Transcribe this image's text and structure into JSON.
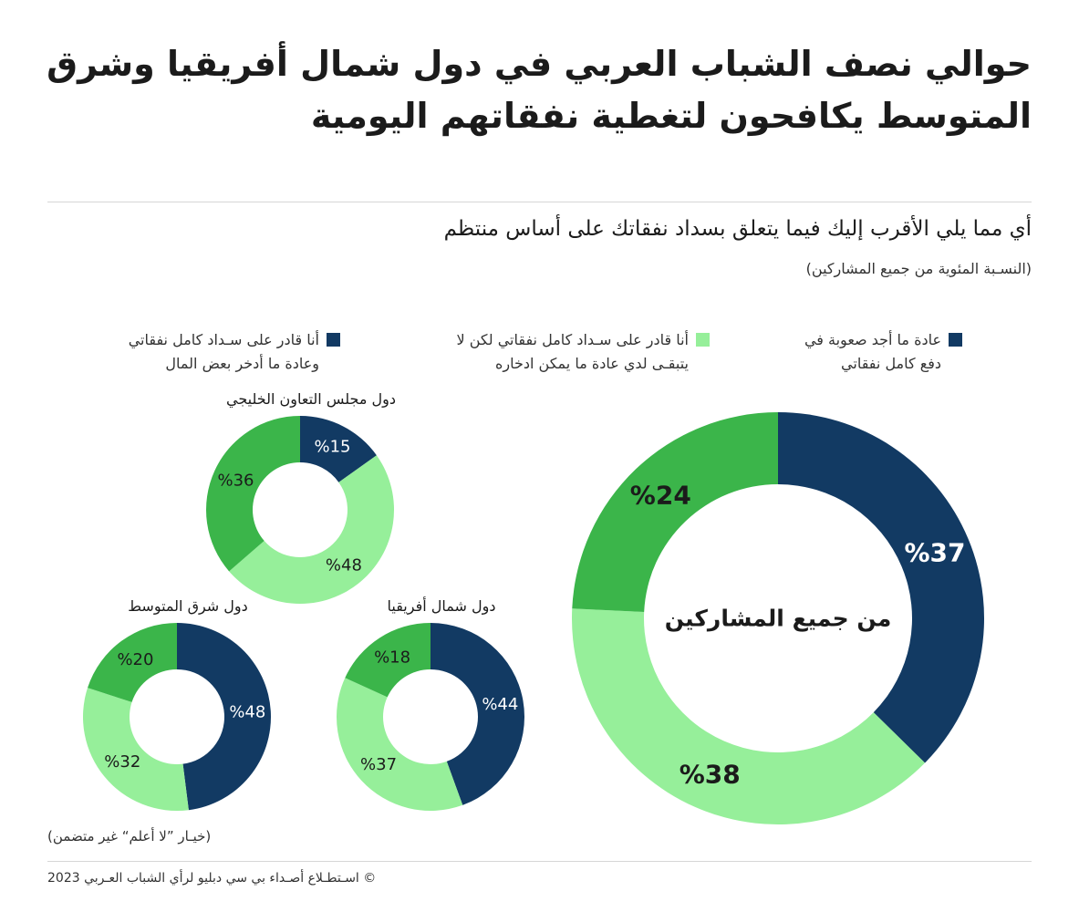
{
  "header": {
    "title_line1": "حوالي نصف الشباب العربي في دول شمال أفريقيا وشرق",
    "title_line2": "المتوسط يكافحون لتغطية نفقاتهم اليومية",
    "subtitle": "أي مما يلي الأقرب إليك فيما يتعلق بسداد نفقاتك على أساس منتظم",
    "unit": "(النسـبة المئوية من جميع المشاركين)"
  },
  "legend": [
    {
      "line1": "عادة ما أجد صعوبة في",
      "line2": "دفع كامل نفقاتي",
      "color": "#123a63"
    },
    {
      "line1": "أنا قادر على سـداد كامل نفقاتي لكن لا",
      "line2": "يتبقـى لدي عادة ما يمكن ادخاره",
      "color": "#96ef9a"
    },
    {
      "line1": "أنا قادر على سـداد كامل نفقاتي",
      "line2": "وعادة ما أدخر بعض المال",
      "color": "#123a63"
    }
  ],
  "colors": {
    "dark": "#123a63",
    "light": "#96ef9a",
    "mid": "#3bb54a"
  },
  "chart_data": [
    {
      "type": "pie",
      "title": "من جميع المشاركين",
      "categories": [
        "عادة ما أجد صعوبة في دفع كامل نفقاتي",
        "أنا قادر على سداد كامل نفقاتي لكن لا يتبقى لدي عادة ما يمكن ادخاره",
        "أنا قادر على سداد كامل نفقاتي وعادة ما أدخر بعض المال"
      ],
      "values": [
        37,
        38,
        24
      ],
      "labels": [
        "%37",
        "%38",
        "%24"
      ]
    },
    {
      "type": "pie",
      "title": "دول مجلس التعاون الخليجي",
      "categories": [
        "عادة ما أجد صعوبة في دفع كامل نفقاتي",
        "أنا قادر على سداد كامل نفقاتي لكن لا يتبقى لدي عادة ما يمكن ادخاره",
        "أنا قادر على سداد كامل نفقاتي وعادة ما أدخر بعض المال"
      ],
      "values": [
        15,
        48,
        36
      ],
      "labels": [
        "%15",
        "%48",
        "%36"
      ]
    },
    {
      "type": "pie",
      "title": "دول شمال أفريقيا",
      "categories": [
        "عادة ما أجد صعوبة في دفع كامل نفقاتي",
        "أنا قادر على سداد كامل نفقاتي لكن لا يتبقى لدي عادة ما يمكن ادخاره",
        "أنا قادر على سداد كامل نفقاتي وعادة ما أدخر بعض المال"
      ],
      "values": [
        44,
        37,
        18
      ],
      "labels": [
        "%44",
        "%37",
        "%18"
      ]
    },
    {
      "type": "pie",
      "title": "دول شرق المتوسط",
      "categories": [
        "عادة ما أجد صعوبة في دفع كامل نفقاتي",
        "أنا قادر على سداد كامل نفقاتي لكن لا يتبقى لدي عادة ما يمكن ادخاره",
        "أنا قادر على سداد كامل نفقاتي وعادة ما أدخر بعض المال"
      ],
      "values": [
        48,
        32,
        20
      ],
      "labels": [
        "%48",
        "%32",
        "%20"
      ]
    }
  ],
  "footer": {
    "note": "(خيـار ”لا أعلم“ غير متضمن)",
    "source": "©  اسـتطـلاع أصـداء بي سي دبليو لرأي الشباب العـربي 2023"
  }
}
